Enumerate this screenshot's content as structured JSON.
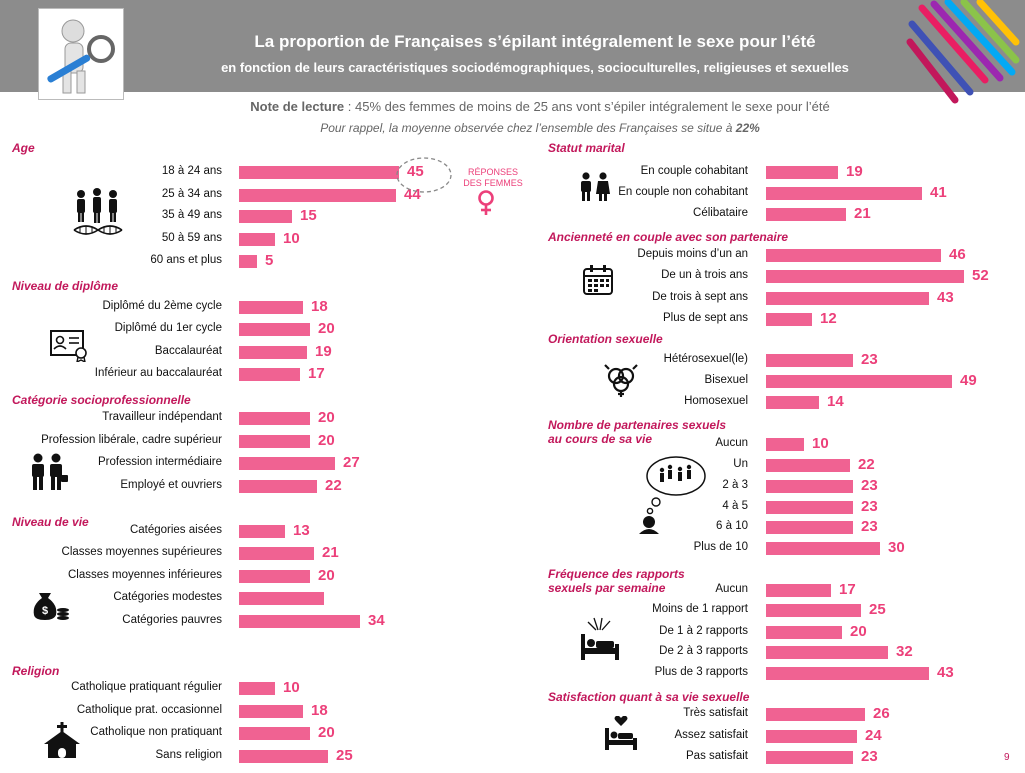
{
  "header": {
    "title": "La proportion de Françaises s’épilant intégralement le sexe pour l’été",
    "subtitle": "en fonction de leurs caractéristiques sociodémographiques, socioculturelles, religieuses et sexuelles"
  },
  "notes": {
    "reading_label": "Note de lecture",
    "reading_text": " : 45% des femmes de moins de 25 ans vont s’épiler intégralement le sexe pour l’été",
    "reminder_text": "Pour rappel, la moyenne observée chez l’ensemble des Françaises se situe à ",
    "reminder_value": "22%"
  },
  "legend": {
    "responses": "RÉPONSES DES FEMMES"
  },
  "page_number": "9",
  "colors": {
    "bar": "#f06292",
    "value": "#ec407a",
    "section": "#c2185b",
    "header": "#8c8c8c"
  },
  "chart_data": {
    "type": "bar",
    "unit": "%",
    "sections": [
      {
        "title": "Age",
        "icon": "family-dna-icon",
        "categories": [
          "18 à 24 ans",
          "25 à 34 ans",
          "35 à 49 ans",
          "50 à 59 ans",
          "60 ans et plus"
        ],
        "values": [
          45,
          44,
          15,
          10,
          5
        ]
      },
      {
        "title": "Niveau de diplôme",
        "icon": "diploma-icon",
        "categories": [
          "Diplômé du 2ème cycle",
          "Diplômé du 1er cycle",
          "Baccalauréat",
          "Inférieur au baccalauréat"
        ],
        "values": [
          18,
          20,
          19,
          17
        ]
      },
      {
        "title": "Catégorie socioprofessionnelle",
        "icon": "workers-icon",
        "categories": [
          "Travailleur indépendant",
          "Profession libérale, cadre supérieur",
          "Profession intermédiaire",
          "Employé et ouvriers"
        ],
        "values": [
          20,
          20,
          27,
          22
        ]
      },
      {
        "title": "Niveau de vie",
        "icon": "money-bag-icon",
        "categories": [
          "Catégories aisées",
          "Classes moyennes supérieures",
          "Classes moyennes inférieures",
          "Catégories modestes",
          "Catégories pauvres"
        ],
        "values": [
          13,
          21,
          20,
          24,
          34
        ],
        "printed": [
          "13",
          "21",
          "20",
          "",
          "34"
        ]
      },
      {
        "title": "Religion",
        "icon": "church-icon",
        "categories": [
          "Catholique pratiquant régulier",
          "Catholique prat. occasionnel",
          "Catholique non pratiquant",
          "Sans religion"
        ],
        "values": [
          10,
          18,
          20,
          25
        ]
      },
      {
        "title": "Statut marital",
        "icon": "couple-icon",
        "categories": [
          "En couple cohabitant",
          "En couple non cohabitant",
          "Célibataire"
        ],
        "values": [
          19,
          41,
          21
        ]
      },
      {
        "title": "Ancienneté en couple avec son partenaire",
        "icon": "calendar-icon",
        "categories": [
          "Depuis moins d’un an",
          "De un à trois ans",
          "De trois à sept ans",
          "Plus de sept ans"
        ],
        "values": [
          46,
          52,
          43,
          12
        ]
      },
      {
        "title": "Orientation sexuelle",
        "icon": "gender-symbols-icon",
        "categories": [
          "Hétérosexuel(le)",
          "Bisexuel",
          "Homosexuel"
        ],
        "values": [
          23,
          49,
          14
        ]
      },
      {
        "title": "Nombre de partenaires sexuels",
        "title2": "au cours de sa vie",
        "icon": "thought-bubble-icon",
        "categories": [
          "Aucun",
          "Un",
          "2 à 3",
          "4 à 5",
          "6 à 10",
          "Plus de 10"
        ],
        "values": [
          10,
          22,
          23,
          23,
          23,
          30
        ]
      },
      {
        "title": "Fréquence des rapports",
        "title2": "sexuels par semaine",
        "icon": "bed-icon",
        "categories": [
          "Aucun",
          "Moins de 1 rapport",
          "De 1 à 2 rapports",
          "De 2 à 3 rapports",
          "Plus de 3 rapports"
        ],
        "values": [
          17,
          25,
          20,
          32,
          43
        ]
      },
      {
        "title": "Satisfaction quant à sa vie sexuelle",
        "icon": "bed-heart-icon",
        "categories": [
          "Très satisfait",
          "Assez satisfait",
          "Pas satisfait"
        ],
        "values": [
          26,
          24,
          23
        ]
      }
    ]
  }
}
